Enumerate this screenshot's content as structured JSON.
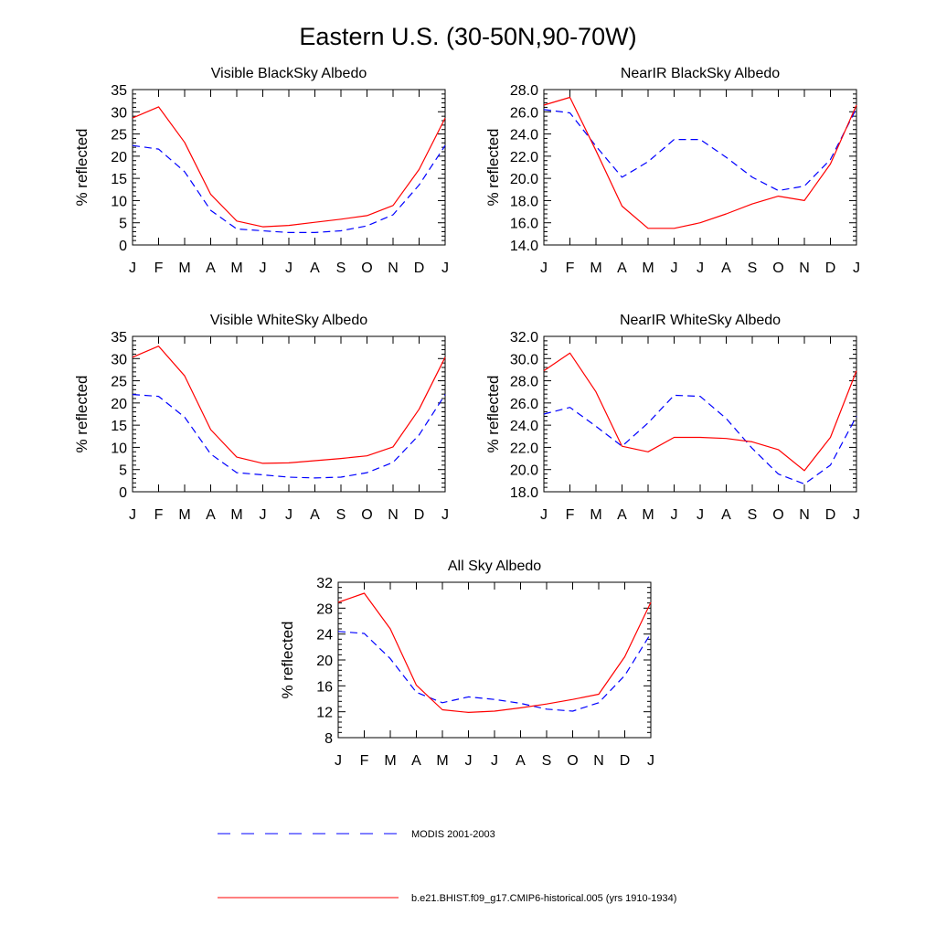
{
  "figure_title": "Eastern U.S. (30-50N,90-70W)",
  "months": [
    "J",
    "F",
    "M",
    "A",
    "M",
    "J",
    "J",
    "A",
    "S",
    "O",
    "N",
    "D",
    "J"
  ],
  "legend": [
    {
      "label": "MODIS 2001-2003",
      "color": "#0000ff",
      "style": "dashed"
    },
    {
      "label": "b.e21.BHIST.f09_g17.CMIP6-historical.005 (yrs 1910-1934)",
      "color": "#ff0000",
      "style": "solid"
    }
  ],
  "chart_data": [
    {
      "type": "line",
      "title": "Visible BlackSky Albedo",
      "ylabel": "% reflected",
      "x": [
        "J",
        "F",
        "M",
        "A",
        "M",
        "J",
        "J",
        "A",
        "S",
        "O",
        "N",
        "D",
        "J"
      ],
      "ylim": [
        0,
        35
      ],
      "yticks": [
        "0",
        "5",
        "10",
        "15",
        "20",
        "25",
        "30",
        "35"
      ],
      "series": [
        {
          "name": "MODIS 2001-2003",
          "color": "#0000ff",
          "dash": true,
          "values": [
            22.4,
            21.6,
            16.5,
            7.8,
            3.6,
            3.2,
            2.8,
            2.8,
            3.2,
            4.3,
            6.8,
            13.5,
            22.4
          ]
        },
        {
          "name": "b.e21.BHIST.f09_g17.CMIP6-historical.005 (yrs 1910-1934)",
          "color": "#ff0000",
          "dash": false,
          "values": [
            28.6,
            31.1,
            23.1,
            11.4,
            5.4,
            4.1,
            4.4,
            5.1,
            5.8,
            6.6,
            8.9,
            17.0,
            28.6
          ]
        }
      ]
    },
    {
      "type": "line",
      "title": "NearIR BlackSky Albedo",
      "ylabel": "% reflected",
      "x": [
        "J",
        "F",
        "M",
        "A",
        "M",
        "J",
        "J",
        "A",
        "S",
        "O",
        "N",
        "D",
        "J"
      ],
      "ylim": [
        14,
        28
      ],
      "yticks": [
        "14.0",
        "16.0",
        "18.0",
        "20.0",
        "22.0",
        "24.0",
        "26.0",
        "28.0"
      ],
      "series": [
        {
          "name": "MODIS 2001-2003",
          "color": "#0000ff",
          "dash": true,
          "values": [
            26.2,
            25.9,
            22.9,
            20.1,
            21.5,
            23.5,
            23.5,
            21.9,
            20.1,
            18.9,
            19.3,
            21.7,
            26.3
          ]
        },
        {
          "name": "b.e21.BHIST.f09_g17.CMIP6-historical.005 (yrs 1910-1934)",
          "color": "#ff0000",
          "dash": false,
          "values": [
            26.6,
            27.3,
            22.5,
            17.5,
            15.5,
            15.5,
            16.0,
            16.8,
            17.7,
            18.4,
            18.0,
            21.3,
            26.6
          ]
        }
      ]
    },
    {
      "type": "line",
      "title": "Visible WhiteSky Albedo",
      "ylabel": "% reflected",
      "x": [
        "J",
        "F",
        "M",
        "A",
        "M",
        "J",
        "J",
        "A",
        "S",
        "O",
        "N",
        "D",
        "J"
      ],
      "ylim": [
        0,
        35
      ],
      "yticks": [
        "0",
        "5",
        "10",
        "15",
        "20",
        "25",
        "30",
        "35"
      ],
      "series": [
        {
          "name": "MODIS 2001-2003",
          "color": "#0000ff",
          "dash": true,
          "values": [
            21.9,
            21.5,
            16.8,
            8.5,
            4.3,
            3.8,
            3.3,
            3.1,
            3.3,
            4.3,
            6.6,
            12.8,
            21.9
          ]
        },
        {
          "name": "b.e21.BHIST.f09_g17.CMIP6-historical.005 (yrs 1910-1934)",
          "color": "#ff0000",
          "dash": false,
          "values": [
            30.3,
            32.8,
            26.1,
            14.0,
            7.8,
            6.4,
            6.5,
            7.0,
            7.5,
            8.1,
            10.1,
            18.6,
            30.3
          ]
        }
      ]
    },
    {
      "type": "line",
      "title": "NearIR WhiteSky Albedo",
      "ylabel": "% reflected",
      "x": [
        "J",
        "F",
        "M",
        "A",
        "M",
        "J",
        "J",
        "A",
        "S",
        "O",
        "N",
        "D",
        "J"
      ],
      "ylim": [
        18,
        32
      ],
      "yticks": [
        "18.0",
        "20.0",
        "22.0",
        "24.0",
        "26.0",
        "28.0",
        "30.0",
        "32.0"
      ],
      "series": [
        {
          "name": "MODIS 2001-2003",
          "color": "#0000ff",
          "dash": true,
          "values": [
            25.0,
            25.6,
            23.9,
            22.1,
            24.2,
            26.7,
            26.6,
            24.6,
            21.9,
            19.6,
            18.7,
            20.4,
            24.8
          ]
        },
        {
          "name": "b.e21.BHIST.f09_g17.CMIP6-historical.005 (yrs 1910-1934)",
          "color": "#ff0000",
          "dash": false,
          "values": [
            28.9,
            30.5,
            27.0,
            22.1,
            21.6,
            22.9,
            22.9,
            22.8,
            22.5,
            21.8,
            19.9,
            22.9,
            28.9
          ]
        }
      ]
    },
    {
      "type": "line",
      "title": "All Sky Albedo",
      "ylabel": "% reflected",
      "x": [
        "J",
        "F",
        "M",
        "A",
        "M",
        "J",
        "J",
        "A",
        "S",
        "O",
        "N",
        "D",
        "J"
      ],
      "ylim": [
        8,
        32
      ],
      "yticks": [
        "8",
        "12",
        "16",
        "20",
        "24",
        "28",
        "32"
      ],
      "series": [
        {
          "name": "MODIS 2001-2003",
          "color": "#0000ff",
          "dash": true,
          "values": [
            24.4,
            24.1,
            20.2,
            15.0,
            13.4,
            14.3,
            13.9,
            13.3,
            12.4,
            12.1,
            13.4,
            17.6,
            24.1
          ]
        },
        {
          "name": "b.e21.BHIST.f09_g17.CMIP6-historical.005 (yrs 1910-1934)",
          "color": "#ff0000",
          "dash": false,
          "values": [
            28.9,
            30.3,
            24.8,
            16.1,
            12.3,
            11.9,
            12.1,
            12.6,
            13.2,
            13.9,
            14.7,
            20.5,
            28.9
          ]
        }
      ]
    }
  ]
}
